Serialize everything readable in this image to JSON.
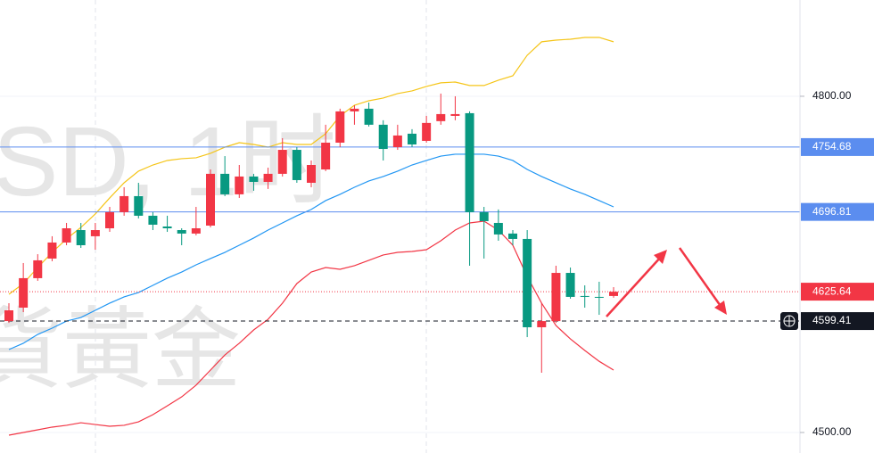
{
  "chart_data": {
    "type": "candlestick",
    "watermark": [
      "SD, 1时",
      "貨黃金"
    ],
    "ylim": [
      4481.7,
      4885.9
    ],
    "yticks": [
      {
        "value": 4800,
        "label": "4800.00"
      },
      {
        "value": 4500,
        "label": "4500.00"
      }
    ],
    "grid": true,
    "up_color": "#f23645",
    "down_color": "#089981",
    "open": [
      4599.4,
      4611.4,
      4637.7,
      4655.2,
      4669.5,
      4680.6,
      4675.1,
      4682.2,
      4696.6,
      4710.9,
      4693.4,
      4683.8,
      4680.6,
      4677.5,
      4684.6,
      4730.8,
      4712.5,
      4728.4,
      4723.6,
      4730.8,
      4752.2,
      4722.8,
      4734.7,
      4758.6,
      4786.5,
      4788.9,
      4774.6,
      4754.6,
      4766.6,
      4760.2,
      4777.8,
      4782.5,
      4784.9,
      4696.6,
      4687,
      4677.5,
      4672.7,
      4593.9,
      4599.4,
      4642.4,
      4621.8,
      4621,
      4621.8
    ],
    "high": [
      4615.4,
      4651.2,
      4659.1,
      4675.1,
      4687,
      4687,
      4687,
      4701.3,
      4718.8,
      4722.8,
      4696.6,
      4693.4,
      4682.2,
      4701.3,
      4734.7,
      4746.6,
      4738.7,
      4730.8,
      4736.3,
      4762.6,
      4754.6,
      4742.7,
      4774.6,
      4788.9,
      4792,
      4794.4,
      4778.6,
      4774.6,
      4770.6,
      4782.5,
      4802.4,
      4800,
      4786.5,
      4701.3,
      4699,
      4680.6,
      4680.6,
      4615.4,
      4648.8,
      4647.2,
      4631.3,
      4634.5,
      4629.7
    ],
    "low": [
      4597.8,
      4607.4,
      4635.3,
      4652.8,
      4667.1,
      4664.7,
      4663.1,
      4679,
      4693.4,
      4691,
      4680.6,
      4679,
      4667.1,
      4675.9,
      4683,
      4710.9,
      4709.3,
      4715.7,
      4717.3,
      4728.4,
      4722.8,
      4718.8,
      4733.2,
      4754.6,
      4774.6,
      4773,
      4742.7,
      4752.2,
      4754.6,
      4758.6,
      4774.6,
      4778.6,
      4648.8,
      4655.2,
      4671.1,
      4667.1,
      4585.1,
      4553.3,
      4597.8,
      4619.4,
      4611.4,
      4605,
      4620.2
    ],
    "close": [
      4609,
      4637.7,
      4653.6,
      4669.5,
      4682.2,
      4667.1,
      4680.6,
      4696.6,
      4710.9,
      4693.4,
      4685.4,
      4682.2,
      4677.5,
      4682.2,
      4730.8,
      4712.5,
      4728.4,
      4723.6,
      4730.8,
      4752.2,
      4725.2,
      4738.7,
      4758.6,
      4786.5,
      4788.9,
      4774.6,
      4753,
      4765,
      4757,
      4776.2,
      4784.1,
      4784.1,
      4696.6,
      4688.6,
      4676.7,
      4672.7,
      4593.9,
      4599.4,
      4642.4,
      4621,
      4621,
      4620.2,
      4625.6
    ],
    "overlays": [
      {
        "color": "#f5c518",
        "values": [
          4623.3,
          4632.9,
          4647.2,
          4660.7,
          4672.7,
          4683,
          4695,
          4709.3,
          4722.8,
          4733.2,
          4738.7,
          4742.7,
          4744.3,
          4745.1,
          4749.1,
          4754.6,
          4758.6,
          4757,
          4754.6,
          4758.6,
          4757,
          4757,
          4766.6,
          4782.5,
          4792,
          4796,
          4798.4,
          4802.4,
          4804.8,
          4808.8,
          4812,
          4812.7,
          4809.6,
          4809.6,
          4814.3,
          4818.3,
          4836.6,
          4848.6,
          4850.1,
          4850.9,
          4852.5,
          4852.5,
          4848.6
        ]
      },
      {
        "color": "#2196f3",
        "values": [
          4574,
          4579.6,
          4587.5,
          4593.1,
          4599.4,
          4602.6,
          4609,
          4615.4,
          4621,
          4624.9,
          4631.3,
          4637.7,
          4643.2,
          4649.6,
          4655.2,
          4660.7,
          4667.1,
          4673.5,
          4680.6,
          4687,
          4693.4,
          4699,
          4706.9,
          4712.5,
          4718.8,
          4724.4,
          4728.4,
          4733.2,
          4738.7,
          4742.7,
          4746.6,
          4748.3,
          4748.3,
          4748.3,
          4746.6,
          4742.7,
          4734.7,
          4728.4,
          4722.8,
          4717.3,
          4712.5,
          4706.9,
          4701.3
        ]
      },
      {
        "color": "#f23645",
        "values": [
          4497.6,
          4500,
          4502.4,
          4504.8,
          4506.4,
          4508.7,
          4507.1,
          4505.6,
          4506.4,
          4509.5,
          4515.9,
          4523.8,
          4531.8,
          4542.2,
          4555.7,
          4569.2,
          4579.6,
          4591.5,
          4601,
          4615.4,
          4632.9,
          4643.2,
          4647.2,
          4645.6,
          4648.8,
          4653.6,
          4658.4,
          4660.7,
          4661.5,
          4663.1,
          4671.1,
          4680.6,
          4687,
          4688.6,
          4680.6,
          4667.1,
          4639.2,
          4615.4,
          4595.4,
          4583.5,
          4573.2,
          4563.5,
          4555.7
        ]
      }
    ],
    "levels": [
      {
        "value": 4754.68,
        "color": "#5b8def"
      },
      {
        "value": 4696.81,
        "color": "#5b8def"
      }
    ],
    "last_price": {
      "value": 4625.64,
      "color": "#f23645"
    },
    "crosshair_price": {
      "value": 4599.41,
      "color": "#131722"
    }
  }
}
